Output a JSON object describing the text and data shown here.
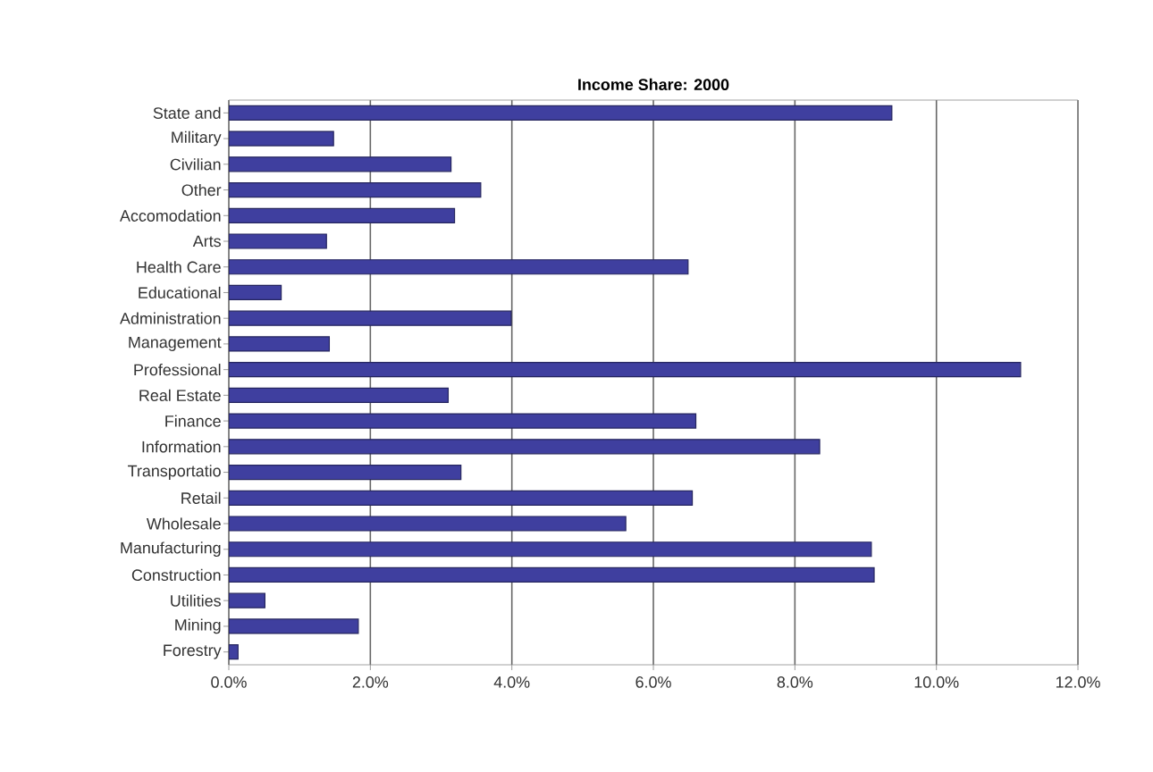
{
  "chart_data": {
    "type": "bar",
    "orientation": "horizontal",
    "title": "Income Share: 2000",
    "categories": [
      "State and",
      "Military",
      "Civilian",
      "Other",
      "Accomodation",
      "Arts",
      "Health Care",
      "Educational",
      "Administration",
      "Management",
      "Professional",
      "Real Estate",
      "Finance",
      "Information",
      "Transportatio",
      "Retail",
      "Wholesale",
      "Manufacturing",
      "Construction",
      "Utilities",
      "Mining",
      "Forestry"
    ],
    "values": [
      9.37,
      1.48,
      3.14,
      3.56,
      3.19,
      1.38,
      6.49,
      0.74,
      3.99,
      1.42,
      11.19,
      3.1,
      6.6,
      8.35,
      3.28,
      6.55,
      5.61,
      9.08,
      9.12,
      0.51,
      1.83,
      0.13
    ],
    "color": "#3f3f9f",
    "xlim": [
      0,
      12
    ],
    "xticks": [
      {
        "value": 0,
        "label": "0.0%"
      },
      {
        "value": 2,
        "label": "2.0%"
      },
      {
        "value": 4,
        "label": "4.0%"
      },
      {
        "value": 6,
        "label": "6.0%"
      },
      {
        "value": 8,
        "label": "8.0%"
      },
      {
        "value": 10,
        "label": "10.0%"
      },
      {
        "value": 12,
        "label": "12.0%"
      }
    ],
    "grid": "x"
  }
}
